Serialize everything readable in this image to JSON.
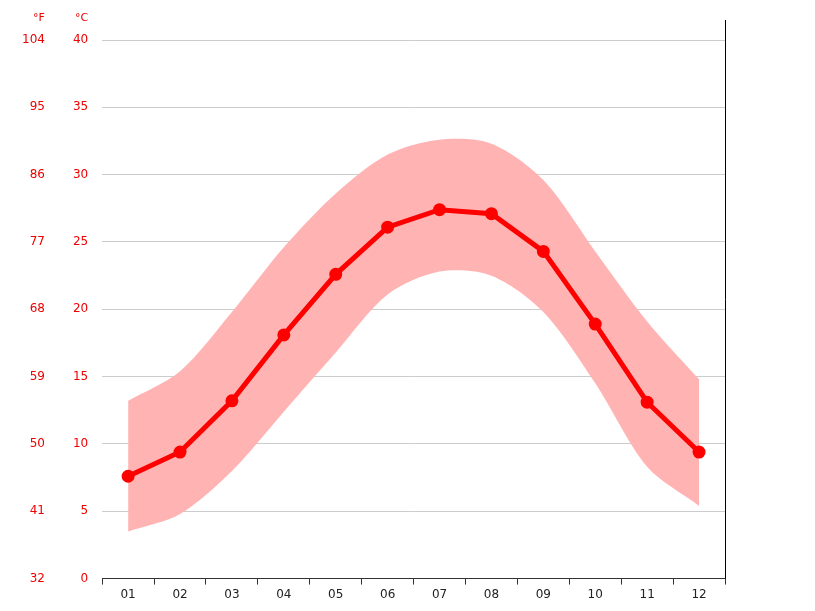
{
  "chart_data": {
    "type": "line",
    "categories": [
      "01",
      "02",
      "03",
      "04",
      "05",
      "06",
      "07",
      "08",
      "09",
      "10",
      "11",
      "12"
    ],
    "series": [
      {
        "values": [
          7.6,
          9.4,
          13.2,
          18.1,
          22.6,
          26.1,
          27.4,
          27.1,
          24.3,
          18.9,
          13.1,
          9.4
        ],
        "color": "#ff0000",
        "marker": "circle",
        "line_style": "solid"
      }
    ],
    "range": {
      "low": [
        3.5,
        4.8,
        8.0,
        12.4,
        16.8,
        21.1,
        22.8,
        22.5,
        19.8,
        14.5,
        8.3,
        5.4
      ],
      "high": [
        13.2,
        15.4,
        19.8,
        24.6,
        28.6,
        31.5,
        32.6,
        32.3,
        29.6,
        24.3,
        19.1,
        14.8
      ],
      "color": "#ffb3b3"
    },
    "y_label": "°C",
    "ylim": [
      0,
      40
    ],
    "yticks": [
      0,
      5,
      10,
      15,
      20,
      25,
      30,
      35,
      40
    ],
    "y2_label": "°F",
    "y2lim": [
      32,
      104
    ],
    "y2ticks": [
      32,
      41,
      50,
      59,
      68,
      77,
      86,
      95,
      104
    ],
    "grid": true
  }
}
